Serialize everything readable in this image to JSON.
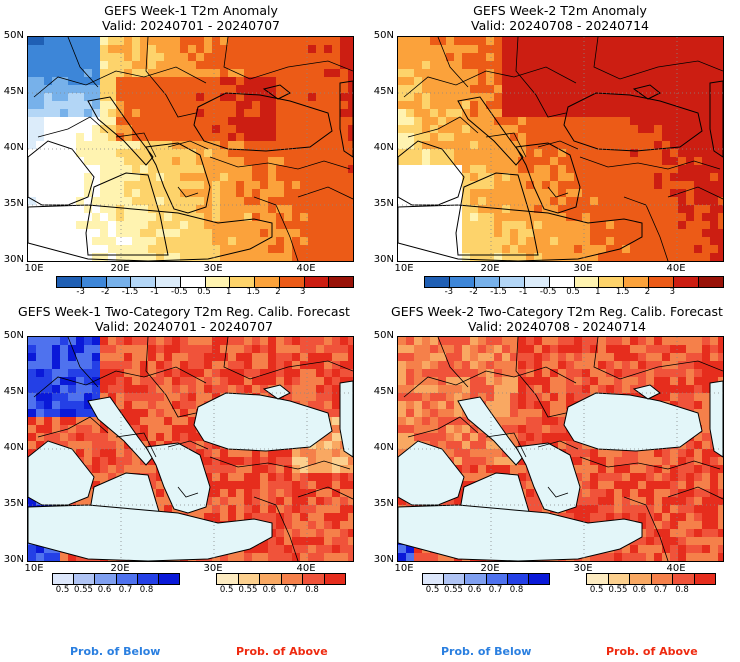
{
  "panels": [
    {
      "title": "GEFS Week-1 T2m Anomaly",
      "valid": "Valid: 20240701 - 20240707"
    },
    {
      "title": "GEFS Week-2 T2m Anomaly",
      "valid": "Valid: 20240708 - 20240714"
    },
    {
      "title": "GEFS Week-1 Two-Category T2m Reg. Calib. Forecast",
      "valid": "Valid: 20240701 - 20240707"
    },
    {
      "title": "GEFS Week-2 Two-Category T2m Reg. Calib. Forecast",
      "valid": "Valid: 20240708 - 20240714"
    }
  ],
  "lat_labels": [
    "50N",
    "45N",
    "40N",
    "35N",
    "30N"
  ],
  "lon_labels": [
    "10E",
    "20E",
    "30E",
    "40E"
  ],
  "anomaly_colorbar": {
    "labels": [
      "-3",
      "-2",
      "-1.5",
      "-1",
      "-0.5",
      "0.5",
      "1",
      "1.5",
      "2",
      "3"
    ],
    "colors": [
      "#1f5fb4",
      "#3d86d8",
      "#77b1ea",
      "#b3d6f6",
      "#dcecfa",
      "#ffffff",
      "#fff3b0",
      "#fdd36b",
      "#fba23b",
      "#ec5b17",
      "#cc1e12",
      "#991208"
    ]
  },
  "below_colorbar": {
    "labels": [
      "0.5",
      "0.55",
      "0.6",
      "0.7",
      "0.8"
    ],
    "colors": [
      "#dde7fb",
      "#b0c4f4",
      "#7f9ff0",
      "#4f72ee",
      "#2440e6",
      "#0a19d8"
    ]
  },
  "above_colorbar": {
    "labels": [
      "0.5",
      "0.55",
      "0.6",
      "0.7",
      "0.8"
    ],
    "colors": [
      "#fdebc0",
      "#fcd08e",
      "#f9a862",
      "#f5804a",
      "#f0533a",
      "#e62d1d"
    ]
  },
  "legend": {
    "below": "Prob. of Below",
    "above": "Prob. of Above",
    "below_color": "#2a7fe0",
    "above_color": "#ee2a10"
  },
  "sea_color": "#e3f6f9"
}
